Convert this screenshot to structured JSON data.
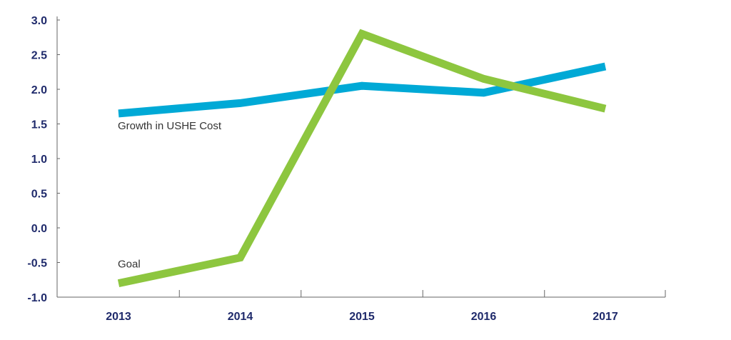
{
  "chart_data": {
    "type": "line",
    "title": "",
    "xlabel": "",
    "ylabel": "",
    "categories": [
      "2013",
      "2014",
      "2015",
      "2016",
      "2017"
    ],
    "ylim": [
      -1.0,
      3.0
    ],
    "yticks": [
      "3.0",
      "2.5",
      "2.0",
      "1.5",
      "1.0",
      "0.5",
      "0.0",
      "-0.5",
      "-1.0"
    ],
    "grid": false,
    "series": [
      {
        "name": "Growth in USHE Cost",
        "color": "#00a9d6",
        "values": [
          1.65,
          1.8,
          2.05,
          1.95,
          2.33
        ]
      },
      {
        "name": "Goal",
        "color": "#8dc63f",
        "values": [
          -0.8,
          -0.43,
          2.8,
          2.15,
          1.72
        ]
      }
    ]
  }
}
